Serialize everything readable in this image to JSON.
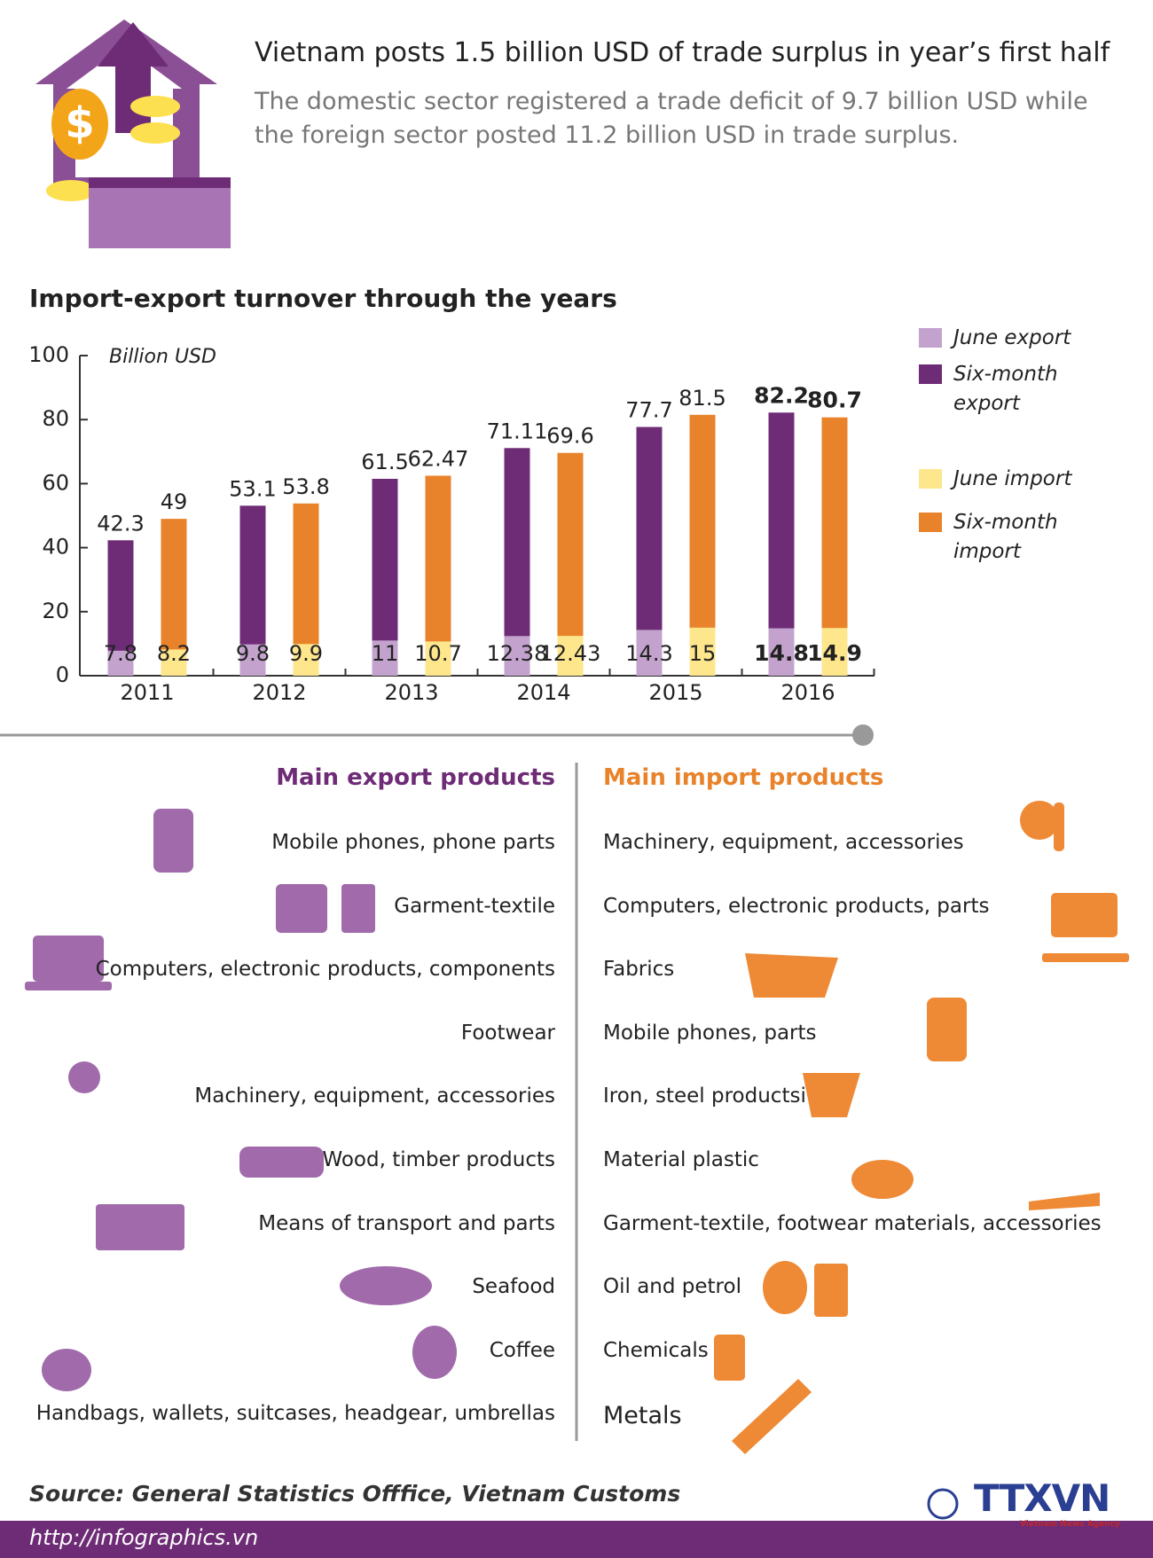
{
  "header": {
    "title": "Vietnam posts 1.5 billion USD of trade surplus in year’s first half",
    "subtitle": "The domestic sector registered a trade deficit of 9.7 billion USD while the foreign sector posted 11.2 billion USD in trade surplus."
  },
  "chart_data": {
    "type": "bar",
    "title": "Import-export turnover through the years",
    "y_label": "Billion USD",
    "categories": [
      "2011",
      "2012",
      "2013",
      "2014",
      "2015",
      "2016"
    ],
    "series": [
      {
        "name": "June export",
        "color": "#c3a3cd",
        "values": [
          7.8,
          9.8,
          11,
          12.38,
          14.3,
          14.8
        ]
      },
      {
        "name": "Six-month export",
        "color": "#6e2c76",
        "values": [
          42.3,
          53.1,
          61.5,
          71.11,
          77.7,
          82.2
        ]
      },
      {
        "name": "June import",
        "color": "#fde68c",
        "values": [
          8.2,
          9.9,
          10.7,
          12.43,
          15,
          14.9
        ]
      },
      {
        "name": "Six-month import",
        "color": "#e8832b",
        "values": [
          49,
          53.8,
          62.47,
          69.6,
          81.5,
          80.7
        ]
      }
    ],
    "ylim": [
      0,
      100
    ],
    "yticks": [
      0,
      20,
      40,
      60,
      80,
      100
    ]
  },
  "exports": {
    "title": "Main export products",
    "items": [
      "Mobile phones, phone parts",
      "Garment-textile",
      "Computers, electronic products, components",
      "Footwear",
      "Machinery, equipment, accessories",
      "Wood, timber products",
      "Means of transport and parts",
      "Seafood",
      "Coffee",
      "Handbags, wallets, suitcases, headgear, umbrellas"
    ]
  },
  "imports": {
    "title": "Main import products",
    "items": [
      "Machinery, equipment, accessories",
      "Computers, electronic products, parts",
      "Fabrics",
      "Mobile phones, parts",
      "Iron, steel productsi",
      "Material plastic",
      "Garment-textile, footwear materials, accessories",
      "Oil and petrol",
      "Chemicals",
      "Metals"
    ]
  },
  "footer": {
    "source": "Source: General Statistics Offfice, Vietnam Customs",
    "url": "http://infographics.vn",
    "logo": "TTXVN",
    "logo_sub": "Vietnam News Agency"
  }
}
